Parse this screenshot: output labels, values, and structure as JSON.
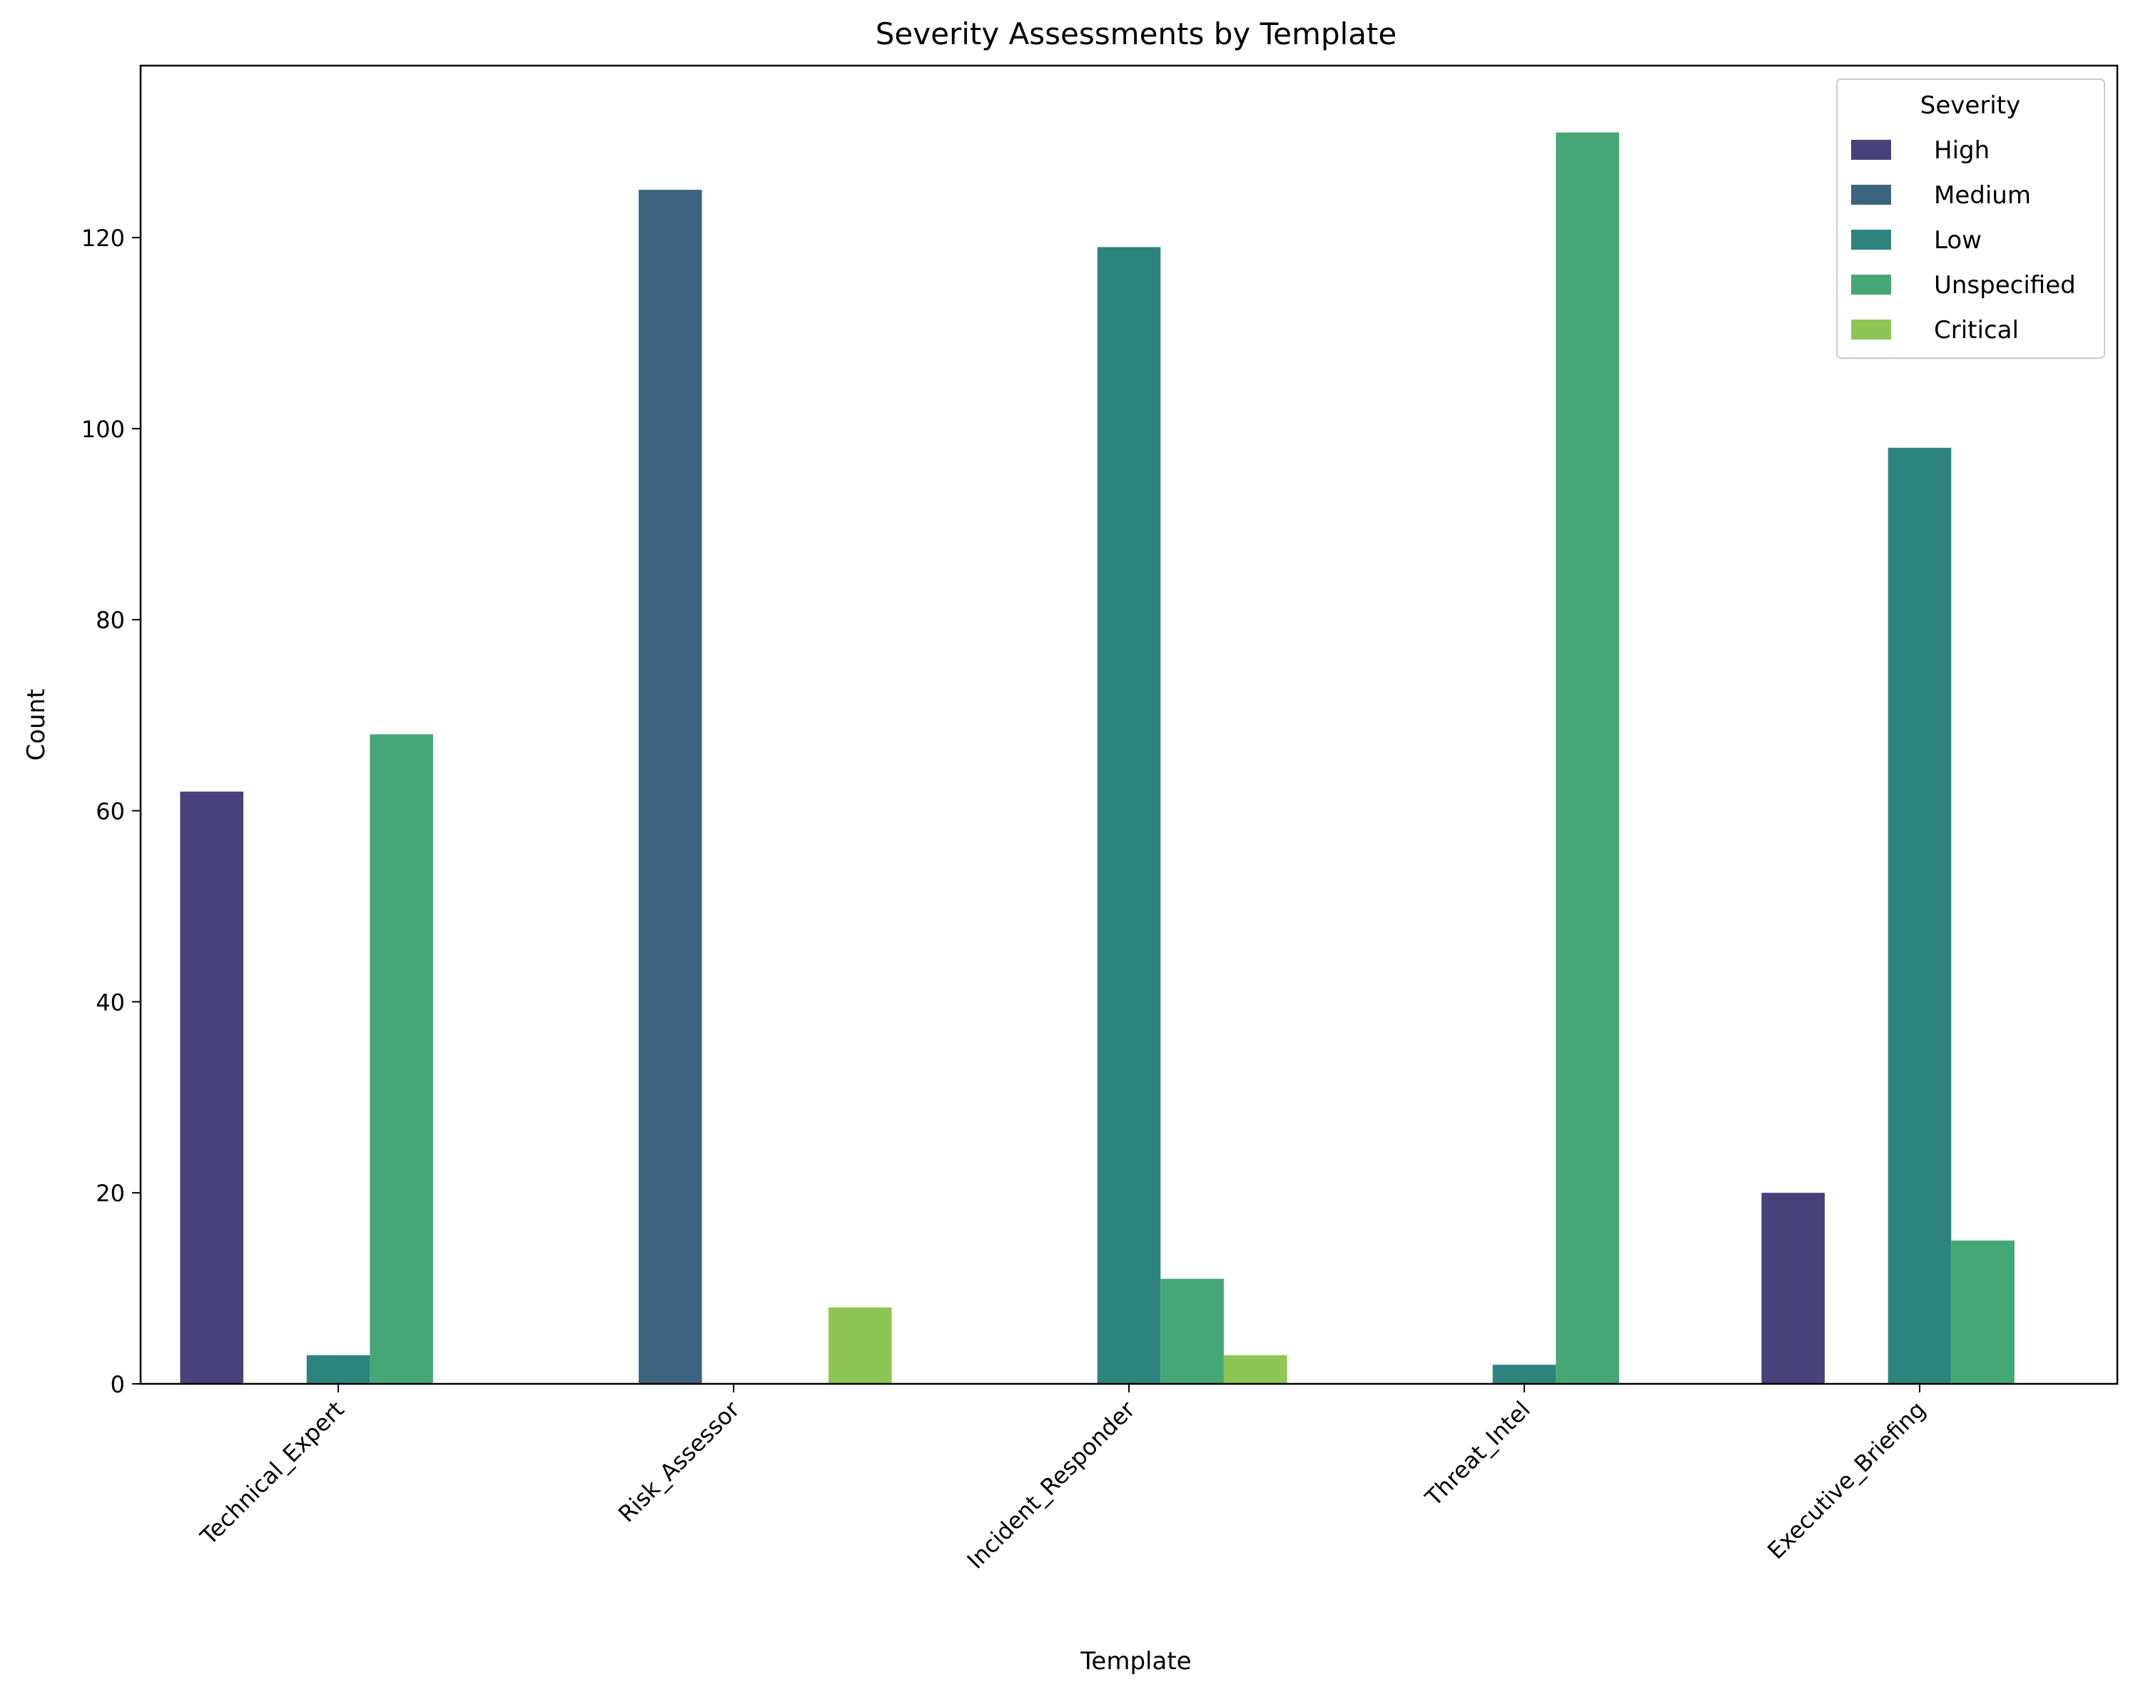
{
  "chart_data": {
    "type": "bar",
    "title": "Severity Assessments by Template",
    "xlabel": "Template",
    "ylabel": "Count",
    "ylim": [
      0,
      138
    ],
    "yticks": [
      0,
      20,
      40,
      60,
      80,
      100,
      120
    ],
    "grid": false,
    "legend": {
      "title": "Severity",
      "placement": "top-right"
    },
    "categories": [
      "Technical_Expert",
      "Risk_Assessor",
      "Incident_Responder",
      "Threat_Intel",
      "Executive_Briefing"
    ],
    "series": [
      {
        "name": "High",
        "color": "#48417a",
        "values": [
          62,
          0,
          0,
          0,
          20
        ]
      },
      {
        "name": "Medium",
        "color": "#3c6480",
        "values": [
          0,
          125,
          0,
          0,
          0
        ]
      },
      {
        "name": "Low",
        "color": "#2d847e",
        "values": [
          3,
          0,
          119,
          2,
          98
        ]
      },
      {
        "name": "Unspecified",
        "color": "#46a776",
        "values": [
          68,
          0,
          11,
          131,
          15
        ]
      },
      {
        "name": "Critical",
        "color": "#8fc555",
        "values": [
          0,
          8,
          3,
          0,
          0
        ]
      }
    ]
  }
}
